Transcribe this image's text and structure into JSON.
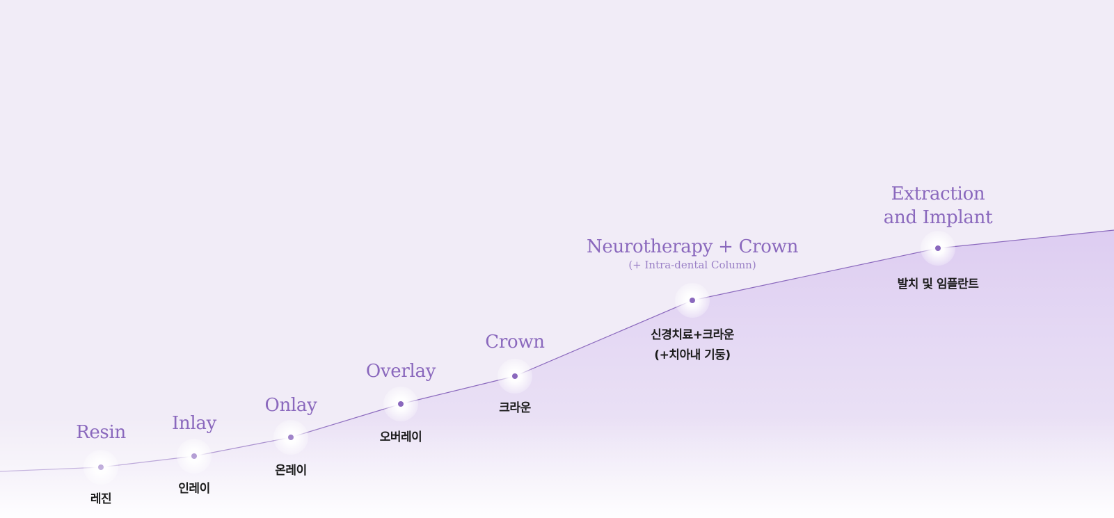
{
  "colors": {
    "background": "#f1ecf7",
    "area_fill": "#ddcdf1",
    "line": "#8a68bd",
    "english_label": "#8a68bd",
    "korean_label": "#1c1c1c"
  },
  "stages": [
    {
      "id": "resin",
      "en": "Resin",
      "ko": "레진"
    },
    {
      "id": "inlay",
      "en": "Inlay",
      "ko": "인레이"
    },
    {
      "id": "onlay",
      "en": "Onlay",
      "ko": "온레이"
    },
    {
      "id": "overlay",
      "en": "Overlay",
      "ko": "오버레이"
    },
    {
      "id": "crown",
      "en": "Crown",
      "ko": "크라운"
    },
    {
      "id": "neurotherapy",
      "en": "Neurotherapy + Crown",
      "en_sub": "(+ Intra-dental Column)",
      "ko": "신경치료+크라운",
      "ko_sub": "(+치아내 기둥)"
    },
    {
      "id": "extraction",
      "en": "Extraction",
      "en_line2": "and Implant",
      "ko": "발치 및 임플란트"
    }
  ]
}
